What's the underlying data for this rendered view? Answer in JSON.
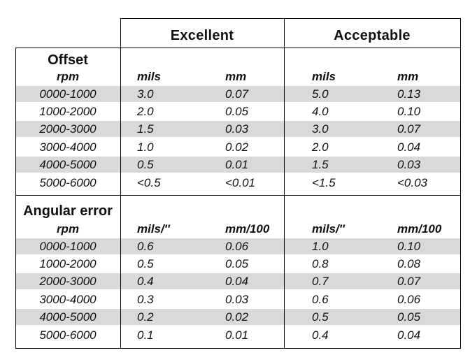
{
  "header": {
    "excellent": "Excellent",
    "acceptable": "Acceptable"
  },
  "offset": {
    "title": "Offset",
    "units": {
      "rpm": "rpm",
      "exc_a": "mils",
      "exc_b": "mm",
      "acc_a": "mils",
      "acc_b": "mm"
    },
    "rows": [
      {
        "rpm": "0000-1000",
        "exc_a": "3.0",
        "exc_b": "0.07",
        "acc_a": "5.0",
        "acc_b": "0.13"
      },
      {
        "rpm": "1000-2000",
        "exc_a": "2.0",
        "exc_b": "0.05",
        "acc_a": "4.0",
        "acc_b": "0.10"
      },
      {
        "rpm": "2000-3000",
        "exc_a": "1.5",
        "exc_b": "0.03",
        "acc_a": "3.0",
        "acc_b": "0.07"
      },
      {
        "rpm": "3000-4000",
        "exc_a": "1.0",
        "exc_b": "0.02",
        "acc_a": "2.0",
        "acc_b": "0.04"
      },
      {
        "rpm": "4000-5000",
        "exc_a": "0.5",
        "exc_b": "0.01",
        "acc_a": "1.5",
        "acc_b": "0.03"
      },
      {
        "rpm": "5000-6000",
        "exc_a": "<0.5",
        "exc_b": "<0.01",
        "acc_a": "<1.5",
        "acc_b": "<0.03"
      }
    ]
  },
  "angular": {
    "title": "Angular error",
    "units": {
      "rpm": "rpm",
      "exc_a": "mils/″",
      "exc_b": "mm/100",
      "acc_a": "mils/″",
      "acc_b": "mm/100"
    },
    "rows": [
      {
        "rpm": "0000-1000",
        "exc_a": "0.6",
        "exc_b": "0.06",
        "acc_a": "1.0",
        "acc_b": "0.10"
      },
      {
        "rpm": "1000-2000",
        "exc_a": "0.5",
        "exc_b": "0.05",
        "acc_a": "0.8",
        "acc_b": "0.08"
      },
      {
        "rpm": "2000-3000",
        "exc_a": "0.4",
        "exc_b": "0.04",
        "acc_a": "0.7",
        "acc_b": "0.07"
      },
      {
        "rpm": "3000-4000",
        "exc_a": "0.3",
        "exc_b": "0.03",
        "acc_a": "0.6",
        "acc_b": "0.06"
      },
      {
        "rpm": "4000-5000",
        "exc_a": "0.2",
        "exc_b": "0.02",
        "acc_a": "0.5",
        "acc_b": "0.05"
      },
      {
        "rpm": "5000-6000",
        "exc_a": "0.1",
        "exc_b": "0.01",
        "acc_a": "0.4",
        "acc_b": "0.04"
      }
    ]
  }
}
